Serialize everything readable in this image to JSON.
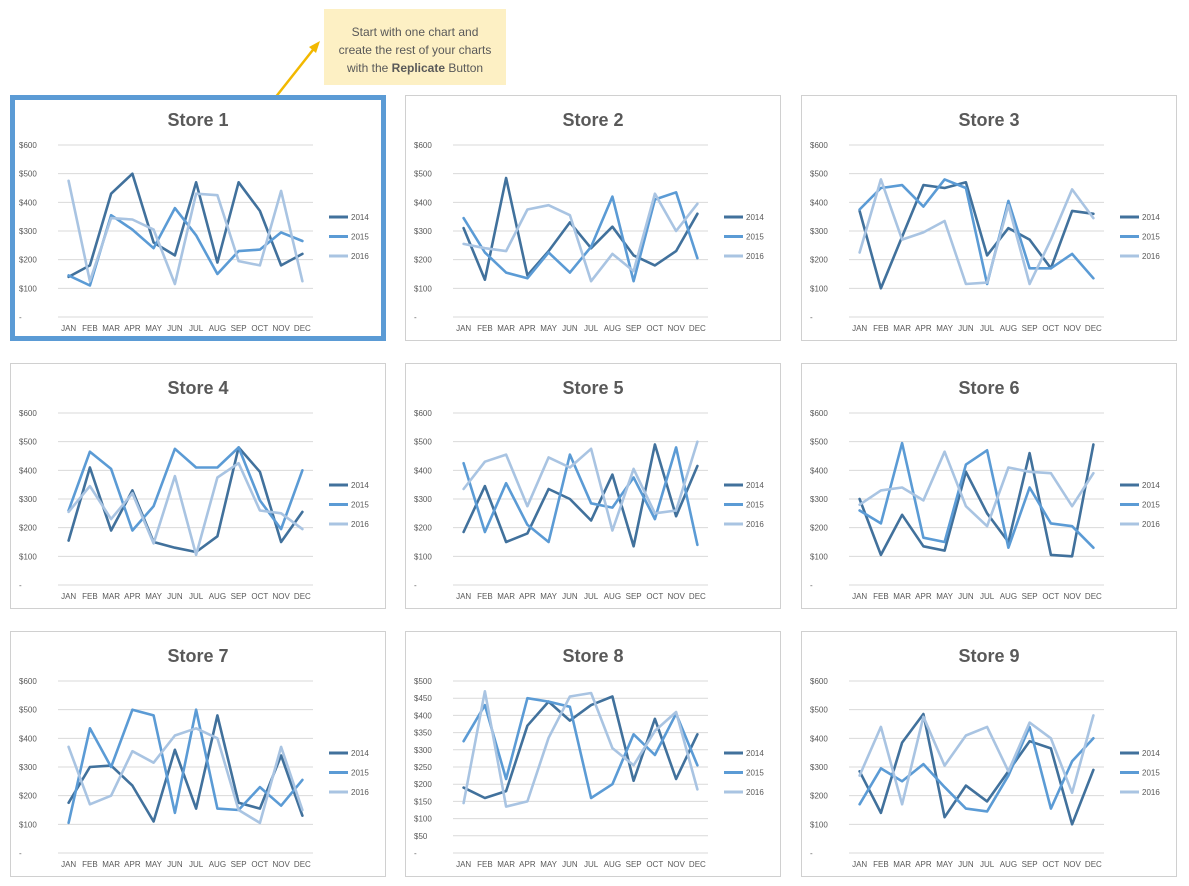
{
  "callout": {
    "line1": "Start with one chart and",
    "line2": "create the rest of your charts",
    "line3_prefix": "with the ",
    "line3_bold": "Replicate",
    "line3_suffix": " Button"
  },
  "colors": {
    "2014": "#41719c",
    "2015": "#5b9bd5",
    "2016": "#a9c4e2",
    "accent": "#5b9bd5",
    "arrow": "#f2b800"
  },
  "chart_data": [
    {
      "type": "line",
      "title": "Store 1",
      "categories": [
        "JAN",
        "FEB",
        "MAR",
        "APR",
        "MAY",
        "JUN",
        "JUL",
        "AUG",
        "SEP",
        "OCT",
        "NOV",
        "DEC"
      ],
      "ylim": [
        0,
        600
      ],
      "yticks": [
        {
          "v": 0,
          "label": "-"
        },
        {
          "v": 100,
          "label": "$100"
        },
        {
          "v": 200,
          "label": "$200"
        },
        {
          "v": 300,
          "label": "$300"
        },
        {
          "v": 400,
          "label": "$400"
        },
        {
          "v": 500,
          "label": "$500"
        },
        {
          "v": 600,
          "label": "$600"
        }
      ],
      "legend": "right",
      "series": [
        {
          "name": "2014",
          "values": [
            140,
            180,
            430,
            500,
            260,
            215,
            470,
            190,
            470,
            370,
            180,
            220
          ]
        },
        {
          "name": "2015",
          "values": [
            145,
            110,
            355,
            305,
            240,
            380,
            285,
            150,
            230,
            235,
            295,
            265
          ]
        },
        {
          "name": "2016",
          "values": [
            475,
            125,
            345,
            340,
            305,
            115,
            430,
            425,
            195,
            180,
            440,
            125
          ]
        }
      ]
    },
    {
      "type": "line",
      "title": "Store 2",
      "categories": [
        "JAN",
        "FEB",
        "MAR",
        "APR",
        "MAY",
        "JUN",
        "JUL",
        "AUG",
        "SEP",
        "OCT",
        "NOV",
        "DEC"
      ],
      "ylim": [
        0,
        600
      ],
      "yticks": [
        {
          "v": 0,
          "label": "-"
        },
        {
          "v": 100,
          "label": "$100"
        },
        {
          "v": 200,
          "label": "$200"
        },
        {
          "v": 300,
          "label": "$300"
        },
        {
          "v": 400,
          "label": "$400"
        },
        {
          "v": 500,
          "label": "$500"
        },
        {
          "v": 600,
          "label": "$600"
        }
      ],
      "legend": "right",
      "series": [
        {
          "name": "2014",
          "values": [
            310,
            130,
            485,
            145,
            230,
            330,
            240,
            315,
            215,
            180,
            230,
            360
          ]
        },
        {
          "name": "2015",
          "values": [
            345,
            225,
            155,
            135,
            225,
            155,
            245,
            420,
            125,
            410,
            435,
            205
          ]
        },
        {
          "name": "2016",
          "values": [
            255,
            240,
            230,
            375,
            390,
            355,
            125,
            220,
            160,
            430,
            300,
            395
          ]
        }
      ]
    },
    {
      "type": "line",
      "title": "Store 3",
      "categories": [
        "JAN",
        "FEB",
        "MAR",
        "APR",
        "MAY",
        "JUN",
        "JUL",
        "AUG",
        "SEP",
        "OCT",
        "NOV",
        "DEC"
      ],
      "ylim": [
        0,
        600
      ],
      "yticks": [
        {
          "v": 0,
          "label": "-"
        },
        {
          "v": 100,
          "label": "$100"
        },
        {
          "v": 200,
          "label": "$200"
        },
        {
          "v": 300,
          "label": "$300"
        },
        {
          "v": 400,
          "label": "$400"
        },
        {
          "v": 500,
          "label": "$500"
        },
        {
          "v": 600,
          "label": "$600"
        }
      ],
      "legend": "right",
      "series": [
        {
          "name": "2014",
          "values": [
            370,
            100,
            280,
            460,
            450,
            470,
            215,
            310,
            270,
            170,
            370,
            360
          ]
        },
        {
          "name": "2015",
          "values": [
            375,
            450,
            460,
            385,
            480,
            450,
            115,
            405,
            170,
            170,
            220,
            135
          ]
        },
        {
          "name": "2016",
          "values": [
            225,
            480,
            270,
            295,
            335,
            115,
            120,
            390,
            115,
            270,
            445,
            345
          ]
        }
      ]
    },
    {
      "type": "line",
      "title": "Store 4",
      "categories": [
        "JAN",
        "FEB",
        "MAR",
        "APR",
        "MAY",
        "JUN",
        "JUL",
        "AUG",
        "SEP",
        "OCT",
        "NOV",
        "DEC"
      ],
      "ylim": [
        0,
        600
      ],
      "yticks": [
        {
          "v": 0,
          "label": "-"
        },
        {
          "v": 100,
          "label": "$100"
        },
        {
          "v": 200,
          "label": "$200"
        },
        {
          "v": 300,
          "label": "$300"
        },
        {
          "v": 400,
          "label": "$400"
        },
        {
          "v": 500,
          "label": "$500"
        },
        {
          "v": 600,
          "label": "$600"
        }
      ],
      "legend": "right",
      "series": [
        {
          "name": "2014",
          "values": [
            155,
            410,
            190,
            330,
            150,
            130,
            115,
            170,
            480,
            395,
            150,
            255
          ]
        },
        {
          "name": "2015",
          "values": [
            260,
            465,
            405,
            190,
            275,
            475,
            410,
            410,
            480,
            295,
            195,
            400
          ]
        },
        {
          "name": "2016",
          "values": [
            255,
            345,
            230,
            320,
            145,
            380,
            105,
            375,
            425,
            260,
            250,
            195
          ]
        }
      ]
    },
    {
      "type": "line",
      "title": "Store 5",
      "categories": [
        "JAN",
        "FEB",
        "MAR",
        "APR",
        "MAY",
        "JUN",
        "JUL",
        "AUG",
        "SEP",
        "OCT",
        "NOV",
        "DEC"
      ],
      "ylim": [
        0,
        600
      ],
      "yticks": [
        {
          "v": 0,
          "label": "-"
        },
        {
          "v": 100,
          "label": "$100"
        },
        {
          "v": 200,
          "label": "$200"
        },
        {
          "v": 300,
          "label": "$300"
        },
        {
          "v": 400,
          "label": "$400"
        },
        {
          "v": 500,
          "label": "$500"
        },
        {
          "v": 600,
          "label": "$600"
        }
      ],
      "legend": "right",
      "series": [
        {
          "name": "2014",
          "values": [
            185,
            345,
            150,
            180,
            335,
            300,
            225,
            385,
            135,
            490,
            240,
            415
          ]
        },
        {
          "name": "2015",
          "values": [
            425,
            185,
            355,
            210,
            150,
            455,
            285,
            270,
            375,
            230,
            480,
            140
          ]
        },
        {
          "name": "2016",
          "values": [
            335,
            430,
            455,
            275,
            445,
            410,
            475,
            190,
            405,
            250,
            260,
            500
          ]
        }
      ]
    },
    {
      "type": "line",
      "title": "Store 6",
      "categories": [
        "JAN",
        "FEB",
        "MAR",
        "APR",
        "MAY",
        "JUN",
        "JUL",
        "AUG",
        "SEP",
        "OCT",
        "NOV",
        "DEC"
      ],
      "ylim": [
        0,
        600
      ],
      "yticks": [
        {
          "v": 0,
          "label": "-"
        },
        {
          "v": 100,
          "label": "$100"
        },
        {
          "v": 200,
          "label": "$200"
        },
        {
          "v": 300,
          "label": "$300"
        },
        {
          "v": 400,
          "label": "$400"
        },
        {
          "v": 500,
          "label": "$500"
        },
        {
          "v": 600,
          "label": "$600"
        }
      ],
      "legend": "right",
      "series": [
        {
          "name": "2014",
          "values": [
            300,
            105,
            245,
            135,
            120,
            395,
            250,
            150,
            460,
            105,
            100,
            490
          ]
        },
        {
          "name": "2015",
          "values": [
            260,
            215,
            495,
            165,
            150,
            420,
            470,
            130,
            340,
            215,
            205,
            130
          ]
        },
        {
          "name": "2016",
          "values": [
            280,
            330,
            340,
            295,
            465,
            275,
            205,
            410,
            395,
            390,
            275,
            390
          ]
        }
      ]
    },
    {
      "type": "line",
      "title": "Store 7",
      "categories": [
        "JAN",
        "FEB",
        "MAR",
        "APR",
        "MAY",
        "JUN",
        "JUL",
        "AUG",
        "SEP",
        "OCT",
        "NOV",
        "DEC"
      ],
      "ylim": [
        0,
        600
      ],
      "yticks": [
        {
          "v": 0,
          "label": "-"
        },
        {
          "v": 100,
          "label": "$100"
        },
        {
          "v": 200,
          "label": "$200"
        },
        {
          "v": 300,
          "label": "$300"
        },
        {
          "v": 400,
          "label": "$400"
        },
        {
          "v": 500,
          "label": "$500"
        },
        {
          "v": 600,
          "label": "$600"
        }
      ],
      "legend": "right",
      "series": [
        {
          "name": "2014",
          "values": [
            175,
            300,
            305,
            235,
            110,
            360,
            155,
            480,
            175,
            155,
            340,
            130
          ]
        },
        {
          "name": "2015",
          "values": [
            105,
            435,
            300,
            500,
            480,
            140,
            500,
            155,
            150,
            230,
            165,
            255
          ]
        },
        {
          "name": "2016",
          "values": [
            370,
            170,
            200,
            355,
            315,
            410,
            435,
            400,
            150,
            105,
            370,
            150
          ]
        }
      ]
    },
    {
      "type": "line",
      "title": "Store 8",
      "categories": [
        "JAN",
        "FEB",
        "MAR",
        "APR",
        "MAY",
        "JUN",
        "JUL",
        "AUG",
        "SEP",
        "OCT",
        "NOV",
        "DEC"
      ],
      "ylim": [
        0,
        500
      ],
      "yticks": [
        {
          "v": 0,
          "label": "-"
        },
        {
          "v": 50,
          "label": "$50"
        },
        {
          "v": 100,
          "label": "$100"
        },
        {
          "v": 150,
          "label": "$150"
        },
        {
          "v": 200,
          "label": "$200"
        },
        {
          "v": 250,
          "label": "$250"
        },
        {
          "v": 300,
          "label": "$300"
        },
        {
          "v": 350,
          "label": "$350"
        },
        {
          "v": 400,
          "label": "$400"
        },
        {
          "v": 450,
          "label": "$450"
        },
        {
          "v": 500,
          "label": "$500"
        }
      ],
      "legend": "right",
      "series": [
        {
          "name": "2014",
          "values": [
            190,
            160,
            180,
            370,
            440,
            385,
            430,
            455,
            210,
            390,
            215,
            345
          ]
        },
        {
          "name": "2015",
          "values": [
            325,
            430,
            215,
            450,
            440,
            425,
            160,
            200,
            345,
            285,
            405,
            255
          ]
        },
        {
          "name": "2016",
          "values": [
            145,
            470,
            135,
            150,
            335,
            455,
            465,
            305,
            255,
            355,
            410,
            185
          ]
        }
      ]
    },
    {
      "type": "line",
      "title": "Store 9",
      "categories": [
        "JAN",
        "FEB",
        "MAR",
        "APR",
        "MAY",
        "JUN",
        "JUL",
        "AUG",
        "SEP",
        "OCT",
        "NOV",
        "DEC"
      ],
      "ylim": [
        0,
        600
      ],
      "yticks": [
        {
          "v": 0,
          "label": "-"
        },
        {
          "v": 100,
          "label": "$100"
        },
        {
          "v": 200,
          "label": "$200"
        },
        {
          "v": 300,
          "label": "$300"
        },
        {
          "v": 400,
          "label": "$400"
        },
        {
          "v": 500,
          "label": "$500"
        },
        {
          "v": 600,
          "label": "$600"
        }
      ],
      "legend": "right",
      "series": [
        {
          "name": "2014",
          "values": [
            285,
            140,
            385,
            485,
            125,
            235,
            180,
            285,
            390,
            365,
            100,
            290
          ]
        },
        {
          "name": "2015",
          "values": [
            170,
            295,
            250,
            310,
            230,
            155,
            145,
            270,
            440,
            155,
            320,
            400
          ]
        },
        {
          "name": "2016",
          "values": [
            270,
            440,
            170,
            475,
            305,
            410,
            440,
            285,
            455,
            400,
            210,
            480
          ]
        }
      ]
    }
  ]
}
